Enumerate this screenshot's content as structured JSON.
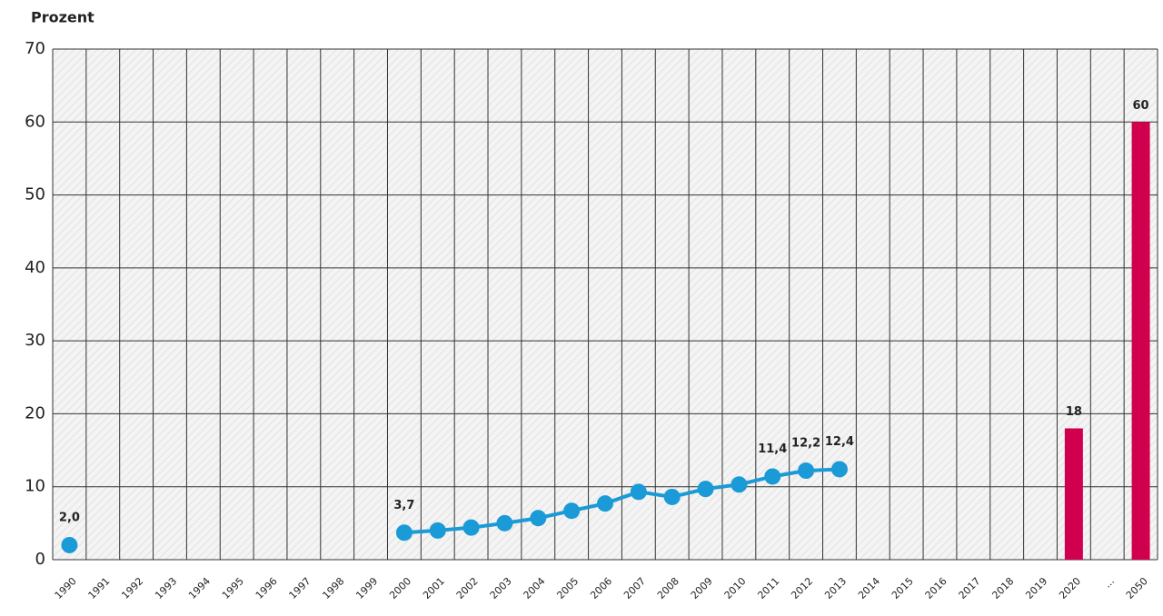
{
  "chart_data": {
    "type": "line-bar",
    "y_label": "Prozent",
    "categories": [
      "1990",
      "1991",
      "1992",
      "1993",
      "1994",
      "1995",
      "1996",
      "1997",
      "1998",
      "1999",
      "2000",
      "2001",
      "2002",
      "2003",
      "2004",
      "2005",
      "2006",
      "2007",
      "2008",
      "2009",
      "2010",
      "2011",
      "2012",
      "2013",
      "2014",
      "2015",
      "2016",
      "2017",
      "2018",
      "2019",
      "2020",
      "...",
      "2050"
    ],
    "series": [
      {
        "type": "line",
        "color": "#1a9ad6",
        "values": [
          2.0,
          null,
          null,
          null,
          null,
          null,
          null,
          null,
          null,
          null,
          3.7,
          4.0,
          4.4,
          5.0,
          5.7,
          6.7,
          7.7,
          9.3,
          8.6,
          9.7,
          10.3,
          11.4,
          12.2,
          12.4,
          null,
          null,
          null,
          null,
          null,
          null,
          null,
          null,
          null
        ],
        "value_labels": [
          "2,0",
          null,
          null,
          null,
          null,
          null,
          null,
          null,
          null,
          null,
          "3,7",
          null,
          null,
          null,
          null,
          null,
          null,
          null,
          null,
          null,
          null,
          "11,4",
          "12,2",
          "12,4",
          null,
          null,
          null,
          null,
          null,
          null,
          null,
          null,
          null
        ]
      },
      {
        "type": "bar",
        "color": "#d0004f",
        "values": [
          null,
          null,
          null,
          null,
          null,
          null,
          null,
          null,
          null,
          null,
          null,
          null,
          null,
          null,
          null,
          null,
          null,
          null,
          null,
          null,
          null,
          null,
          null,
          null,
          null,
          null,
          null,
          null,
          null,
          null,
          18,
          null,
          60
        ]
      }
    ],
    "ylim": [
      0,
      70
    ],
    "yticks": [
      0,
      10,
      20,
      30,
      40,
      50,
      60,
      70
    ],
    "grid": true
  }
}
